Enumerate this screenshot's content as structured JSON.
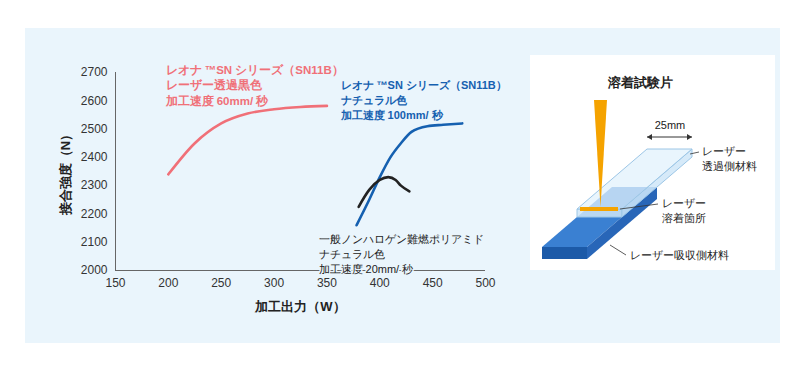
{
  "chart_data": {
    "type": "line",
    "x_label": "加工出力（W）",
    "y_label": "接合強度（N）",
    "xlim": [
      150,
      500
    ],
    "xticks": [
      150,
      200,
      250,
      300,
      350,
      400,
      450,
      500
    ],
    "ylim": [
      2000,
      2700
    ],
    "yticks": [
      2000,
      2100,
      2200,
      2300,
      2400,
      2500,
      2600,
      2700
    ],
    "grid": false,
    "series": [
      {
        "annotation": [
          "レオナ ™SN シリーズ（SN11B）",
          "レーザー透過黒色",
          "加工速度 60mm/ 秒"
        ],
        "color": "#f07078",
        "x": [
          200,
          225,
          250,
          275,
          300,
          325,
          350
        ],
        "values": [
          2340,
          2450,
          2520,
          2555,
          2570,
          2578,
          2582
        ]
      },
      {
        "annotation": [
          "レオナ ™SN シリーズ（SN11B）",
          "ナチュラル色",
          "加工速度 100mm/ 秒"
        ],
        "color": "#1560b0",
        "x": [
          378,
          390,
          400,
          410,
          420,
          430,
          445,
          460,
          478
        ],
        "values": [
          2160,
          2250,
          2330,
          2400,
          2450,
          2490,
          2510,
          2515,
          2520
        ]
      },
      {
        "annotation": [
          "一般ノンハロゲン難燃ポリアミド",
          "ナチュラル色",
          "加工速度 20mm/ 秒"
        ],
        "color": "#222222",
        "x": [
          380,
          390,
          400,
          408,
          415,
          420,
          428
        ],
        "values": [
          2225,
          2285,
          2320,
          2330,
          2320,
          2300,
          2280
        ]
      }
    ]
  },
  "diagram": {
    "title": "溶着試験片",
    "width_label": "25mm",
    "labels": [
      [
        "レーザー",
        "透過側材料"
      ],
      [
        "レーザー",
        "溶着箇所"
      ],
      [
        "レーザー吸収側材料"
      ]
    ]
  }
}
